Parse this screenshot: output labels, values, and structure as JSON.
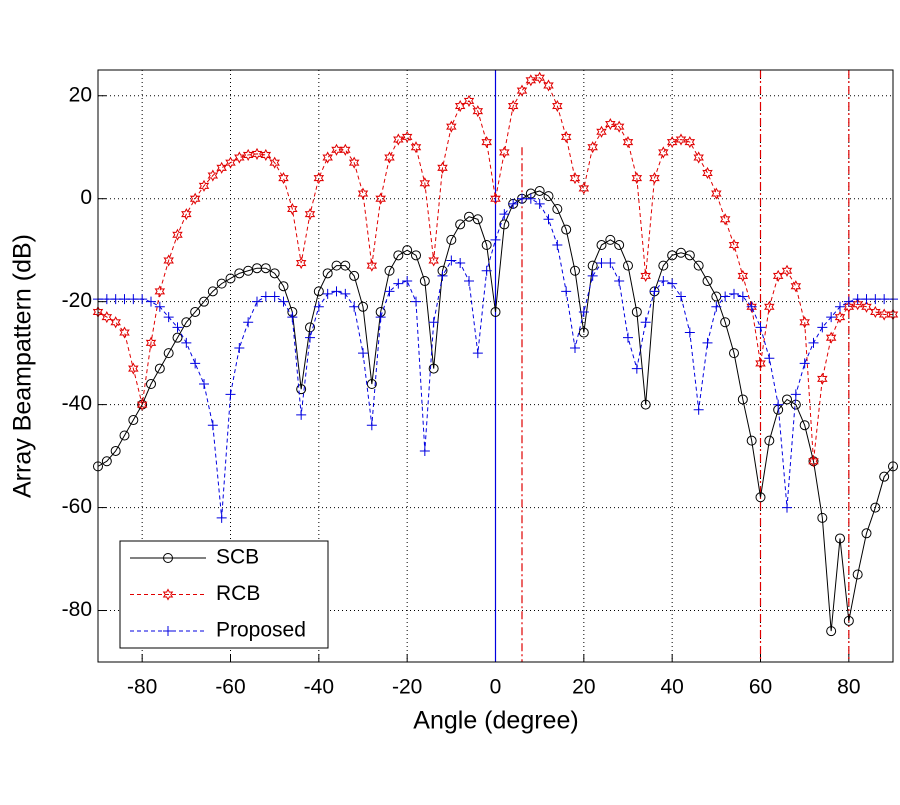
{
  "chart_data": {
    "type": "line",
    "xlabel": "Angle (degree)",
    "ylabel": "Array Beampattern (dB)",
    "xlim": [
      -90,
      90
    ],
    "ylim": [
      -90,
      25
    ],
    "xticks": [
      -80,
      -60,
      -40,
      -20,
      0,
      20,
      40,
      60,
      80
    ],
    "yticks": [
      -80,
      -60,
      -40,
      -20,
      0,
      20
    ],
    "grid": true,
    "legend": "lower left",
    "x": [
      -90,
      -88,
      -86,
      -84,
      -82,
      -80,
      -78,
      -76,
      -74,
      -72,
      -70,
      -68,
      -66,
      -64,
      -62,
      -60,
      -58,
      -56,
      -54,
      -52,
      -50,
      -48,
      -46,
      -44,
      -42,
      -40,
      -38,
      -36,
      -34,
      -32,
      -30,
      -28,
      -26,
      -24,
      -22,
      -20,
      -18,
      -16,
      -14,
      -12,
      -10,
      -8,
      -6,
      -4,
      -2,
      0,
      2,
      4,
      6,
      8,
      10,
      12,
      14,
      16,
      18,
      20,
      22,
      24,
      26,
      28,
      30,
      32,
      34,
      36,
      38,
      40,
      42,
      44,
      46,
      48,
      50,
      52,
      54,
      56,
      58,
      60,
      62,
      64,
      66,
      68,
      70,
      72,
      74,
      76,
      78,
      80,
      82,
      84,
      86,
      88,
      90
    ],
    "series": [
      {
        "name": "SCB",
        "color": "#000000",
        "marker": "circle",
        "dash": "solid",
        "values": [
          -52,
          -51,
          -49,
          -46,
          -43,
          -40,
          -36,
          -33,
          -30,
          -27,
          -24,
          -22,
          -20,
          -18,
          -16.5,
          -15.5,
          -14.5,
          -14,
          -13.5,
          -13.5,
          -14.5,
          -17,
          -22,
          -37,
          -25,
          -18,
          -14.5,
          -13,
          -13,
          -15,
          -21,
          -36,
          -22,
          -14,
          -11,
          -10,
          -11,
          -16,
          -33,
          -14,
          -8,
          -5,
          -3.5,
          -4,
          -9,
          -22,
          -5,
          -1,
          0,
          1,
          1.5,
          0.5,
          -2,
          -6,
          -14,
          -26,
          -13,
          -9,
          -8,
          -9,
          -13,
          -22,
          -40,
          -18,
          -13,
          -11,
          -10.5,
          -11,
          -13,
          -16,
          -19,
          -24,
          -30,
          -39,
          -47,
          -58,
          -47,
          -41,
          -39,
          -40,
          -44,
          -51,
          -62,
          -84,
          -66,
          -82,
          -73,
          -65,
          -60,
          -54,
          -52
        ]
      },
      {
        "name": "RCB",
        "color": "#e00000",
        "marker": "hexagram",
        "dash": "dashed",
        "values": [
          -22,
          -23,
          -24,
          -26,
          -33,
          -40,
          -28,
          -18,
          -12,
          -7,
          -3,
          0,
          2.5,
          4.5,
          6,
          7,
          8,
          8.5,
          8.7,
          8.5,
          7,
          4,
          -2,
          -12.5,
          -3,
          4,
          8,
          9.5,
          9.5,
          7,
          1,
          -13,
          0,
          8,
          11.5,
          12,
          10,
          3,
          -12,
          6,
          14,
          18,
          19,
          17,
          11,
          0,
          9,
          18,
          21,
          23,
          23.5,
          22,
          18,
          12,
          4,
          2,
          10,
          13,
          14.5,
          14,
          11,
          4,
          -15,
          4,
          9,
          11,
          11.5,
          11,
          8,
          5,
          1,
          -4,
          -9,
          -15,
          -21,
          -32,
          -21,
          -15,
          -14,
          -17,
          -24,
          -51,
          -35,
          -27,
          -23,
          -21,
          -20.5,
          -21,
          -22,
          -22.5,
          -22.5
        ]
      },
      {
        "name": "Proposed",
        "color": "#0000e0",
        "marker": "plus",
        "dash": "dashed",
        "values": [
          -19.5,
          -19.5,
          -19.5,
          -19.5,
          -19.5,
          -19.5,
          -20,
          -21,
          -23,
          -25,
          -28,
          -32,
          -36,
          -44,
          -62,
          -38,
          -29,
          -24,
          -20,
          -19,
          -19,
          -20,
          -23,
          -42,
          -27,
          -21,
          -18.5,
          -18,
          -18.5,
          -21,
          -30,
          -44,
          -23,
          -18,
          -16.5,
          -16,
          -20,
          -49,
          -24,
          -15,
          -12,
          -12.5,
          -16,
          -30,
          -14,
          -8,
          -3,
          -1,
          0,
          0,
          -1,
          -4,
          -9,
          -18,
          -29,
          -22,
          -15,
          -12.5,
          -12.5,
          -16,
          -27,
          -33,
          -24,
          -18,
          -16,
          -16.5,
          -19,
          -26,
          -41,
          -28,
          -21,
          -19,
          -18.5,
          -19,
          -21,
          -25,
          -31,
          -40,
          -60,
          -38,
          -32,
          -28,
          -25,
          -23,
          -21,
          -20,
          -19.5,
          -19.5,
          -19.5,
          -19.5,
          -19.5
        ]
      }
    ],
    "vlines": [
      {
        "x": 0,
        "color": "#0000e0",
        "style": "solid"
      },
      {
        "x": 6,
        "top": 10,
        "color": "#e00000",
        "style": "dashdot"
      },
      {
        "x": 60,
        "color": "#e00000",
        "style": "dashdot"
      },
      {
        "x": 80,
        "color": "#e00000",
        "style": "dashdot"
      }
    ]
  }
}
